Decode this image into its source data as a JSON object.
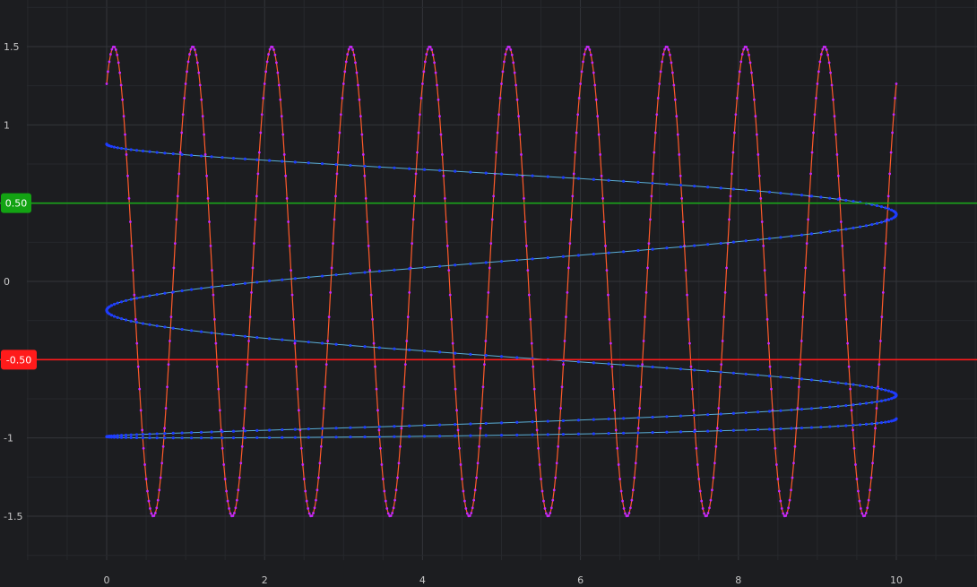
{
  "chart_data": {
    "type": "scatter",
    "xlim": [
      -1.0,
      11.0
    ],
    "ylim": [
      -1.75,
      1.78
    ],
    "x_ticks": [
      0,
      2,
      4,
      6,
      8,
      10
    ],
    "x_tick_labels": [
      "0",
      "2",
      "4",
      "6",
      "8",
      "10"
    ],
    "y_ticks": [
      1.5,
      1,
      0,
      -1,
      -1.5
    ],
    "y_tick_labels": [
      "1.5",
      "1",
      "0",
      "-1",
      "-1.5"
    ],
    "grid": true,
    "legend": "none",
    "series": [
      {
        "style": "line-with-markers",
        "line_color": "#ff5a2a",
        "marker_color": "#c227ff",
        "equation": "y = 1.5 * sin(2*pi*x + 1.0)",
        "x_range": [
          0,
          10
        ],
        "points": 600
      },
      {
        "style": "parametric-line-with-markers",
        "line_color": "#5aaed6",
        "marker_color": "#1e3cff",
        "equation": "x = 5 + 5*sin(pi*t - pi/2) * ... ; y = cos(...) — horizontal zigzag spanning x 0..10, y -1..1",
        "points": 400
      }
    ],
    "horizontal_lines": [
      {
        "value": 0.5,
        "label": "0.50",
        "color": "#1aa51a",
        "badge_color": "#13a313"
      },
      {
        "value": -0.5,
        "label": "-0.50",
        "color": "#ff1b1b",
        "badge_color": "#ff1b1b"
      }
    ],
    "background": "#1c1d20",
    "grid_color": "#33353a",
    "minor_grid_color": "#26282c"
  }
}
